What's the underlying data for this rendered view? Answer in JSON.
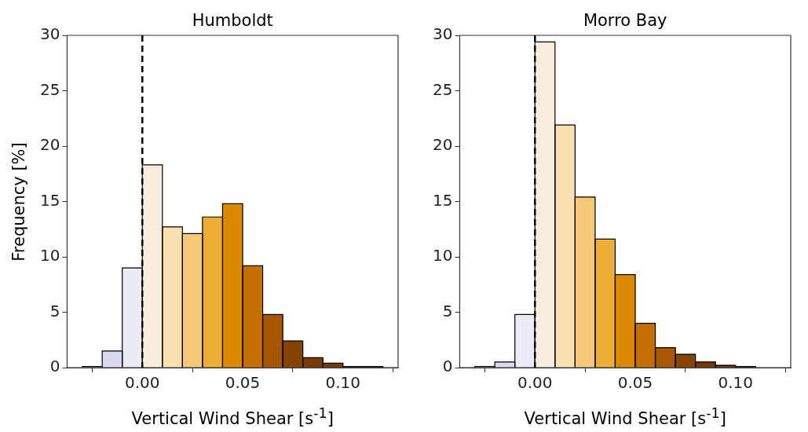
{
  "chart_data": [
    {
      "type": "histogram",
      "title": "Humboldt",
      "xlabel": "Vertical Wind Shear [s$^{-1}$]",
      "ylabel": "Frequency [%]",
      "bins": [
        -0.03,
        -0.02,
        -0.01,
        0.0,
        0.01,
        0.02,
        0.03,
        0.04,
        0.05,
        0.06,
        0.07,
        0.08,
        0.09,
        0.1,
        0.11,
        0.12
      ],
      "values": [
        0.1,
        1.5,
        9.0,
        18.3,
        12.7,
        12.1,
        13.6,
        14.8,
        9.2,
        4.8,
        2.4,
        0.9,
        0.4,
        0.1,
        0.1
      ],
      "colors": [
        "#d9d9ef",
        "#d9d9ef",
        "#ececf4",
        "#f8eddc",
        "#f9e0b0",
        "#f5c978",
        "#eead35",
        "#db8a00",
        "#c47000",
        "#a65600",
        "#864400",
        "#7a3b00",
        "#7a3b00",
        "#6e3400",
        "#6e3400"
      ],
      "xlim": [
        -0.0375,
        0.1275
      ],
      "xticks": [
        {
          "value": 0,
          "label": "0.00"
        },
        {
          "value": 0.05,
          "label": "0.05"
        },
        {
          "value": 0.1,
          "label": "0.10"
        }
      ],
      "ylim": [
        0,
        30
      ],
      "yticks": [
        0,
        5,
        10,
        15,
        20,
        25,
        30
      ],
      "grid": false,
      "ref_lines": [
        {
          "axis": "x",
          "value": 0,
          "color": "#000000",
          "line_style": "dashed"
        }
      ]
    },
    {
      "type": "histogram",
      "title": "Morro Bay",
      "xlabel": "Vertical Wind Shear [s$^{-1}$]",
      "bins": [
        -0.03,
        -0.02,
        -0.01,
        0.0,
        0.01,
        0.02,
        0.03,
        0.04,
        0.05,
        0.06,
        0.07,
        0.08,
        0.09,
        0.1,
        0.11
      ],
      "values": [
        0.1,
        0.5,
        4.8,
        29.4,
        21.9,
        15.4,
        11.6,
        8.4,
        4.0,
        1.8,
        1.2,
        0.5,
        0.2,
        0.1
      ],
      "colors": [
        "#d9d9ef",
        "#d9d9ef",
        "#ececf4",
        "#f8eddc",
        "#f9e0b0",
        "#f5c978",
        "#eead35",
        "#db8a00",
        "#c47000",
        "#a85900",
        "#884400",
        "#7a3800",
        "#7a3800",
        "#6e3400"
      ],
      "xlim": [
        -0.0375,
        0.1275
      ],
      "xticks": [
        {
          "value": 0,
          "label": "0.00"
        },
        {
          "value": 0.05,
          "label": "0.05"
        },
        {
          "value": 0.1,
          "label": "0.10"
        }
      ],
      "ylim": [
        0,
        30
      ],
      "yticks": [
        0,
        5,
        10,
        15,
        20,
        25,
        30
      ],
      "grid": false,
      "ref_lines": [
        {
          "axis": "x",
          "value": 0,
          "color": "#000000",
          "line_style": "dashed"
        }
      ]
    }
  ]
}
